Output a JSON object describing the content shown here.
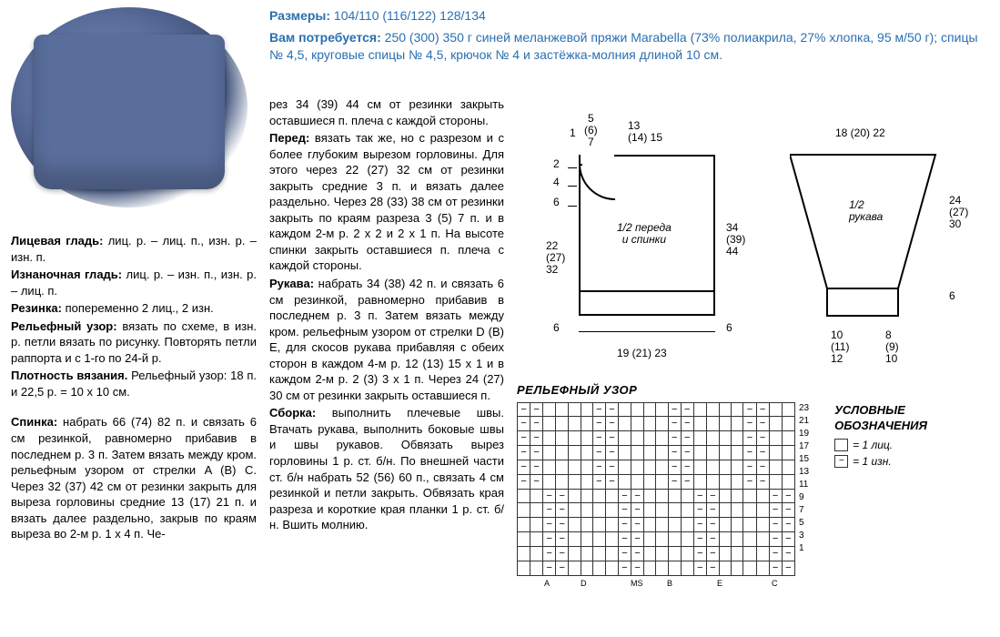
{
  "header": {
    "sizes_label": "Размеры:",
    "sizes_value": " 104/110 (116/122) 128/134",
    "needs_label": "Вам потребуется:",
    "needs_value": " 250 (300) 350 г синей меланжевой пряжи Marabella (73% полиакрила, 27% хлопка, 95 м/50 г); спицы № 4,5, круговые спицы № 4,5, крючок № 4 и застёжка-мол­ния длиной 10 см."
  },
  "col1": {
    "p1_b": "Лицевая гладь:",
    "p1": " лиц. р. – лиц. п., изн. р. – изн. п.",
    "p2_b": "Изнаночная гладь:",
    "p2": " лиц. р. – изн. п., изн. р. – лиц. п.",
    "p3_b": "Резинка:",
    "p3": " попеременно 2 лиц., 2 изн.",
    "p4_b": "Рельефный узор:",
    "p4": " вязать по схеме, в изн. р. петли вязать по рисунку. По­вторять петли раппорта и с 1-го по 24-й р.",
    "p5_b": "Плотность вязания.",
    "p5": " Рельефный узор: 18 п. и 22,5 р. = 10 x 10 см.",
    "p6_b": "Спинка:",
    "p6": " набрать 66 (74) 82 п. и свя­зать 6 см резинкой, равномерно прибавив в последнем р. 3 п. Затем вязать между кром. рельефным узо­ром от стрелки A (B) C. Через 32 (37) 42 см от резинки закрыть для выре­за горловины средние 13 (17) 21 п. и вязать далее раздельно, закрыв по краям выреза во 2-м р. 1 x 4 п. Че-"
  },
  "col2": {
    "p1": "рез 34 (39) 44 см от резинки закрыть оставшиеся п. плеча с каждой сторо­ны.",
    "p2_b": "Перед:",
    "p2": " вязать так же, но с разрезом и с более глубоким вырезом горловины. Для этого через 22 (27) 32 см от резин­ки закрыть средние 3 п. и вязать далее раздельно. Через 28 (33) 38 см от ре­зинки закрыть по краям разреза 3 (5) 7 п. и в каждом 2-м р. 2 x 2 и 2 x 1 п. На высоте спинки закрыть оставшиеся п. плеча с каждой стороны.",
    "p3_b": "Рукава:",
    "p3": " набрать 34 (38) 42 п. и свя­зать 6 см резинкой, равномерно при­бавив в последнем р. 3 п. Затем вя­зать между кром. рельефным узором от стрелки D (B) E, для скосов рукава прибавляя с обеих сторон в каждом 4-м р. 12 (13) 15 x 1 и в каждом 2-м р. 2 (3) 3 x 1 п. Через 24 (27) 30 см от ре­зинки закрыть оставшиеся п.",
    "p4_b": "Сборка:",
    "p4": " выполнить плечевые швы. Втачать рукава, выполнить боковые швы и швы рукавов. Обвязать вырез горловины 1 р. ст. б/н. По внешней ча­сти ст. б/н набрать 52 (56) 60 п., свя­зать 4 см резинкой и петли закрыть. Обвязать края разреза и короткие края планки 1 р. ст. б/н. Вшить мол­нию."
  },
  "diag": {
    "body_label": "1/2 переда\nи спинки",
    "sleeve_label": "1/2\nрукава",
    "top_1": "1",
    "top_5_6_7": "5\n(6)\n7",
    "top_13_14_15": "13\n(14) 15",
    "top_18_20_22": "18 (20) 22",
    "left_2": "2",
    "left_4": "4",
    "left_6": "6",
    "left_22_27_32": "22\n(27)\n32",
    "right_34_39_44": "34\n(39)\n44",
    "right_24_27_30": "24\n(27)\n30",
    "bot_6_l": "6",
    "bot_6_r": "6",
    "bot_19_21_23": "19 (21) 23",
    "bot_10_11_12": "10\n(11)\n12",
    "bot_8_9_10": "8\n(9)\n10"
  },
  "pattern": {
    "title": "РЕЛЬЕФНЫЙ УЗОР",
    "legend_title": "УСЛОВНЫЕ ОБОЗНАЧЕНИЯ",
    "legend1": "= 1 лиц.",
    "legend2": "= 1 изн.",
    "rows": [
      "23",
      "21",
      "19",
      "17",
      "15",
      "13",
      "11",
      "9",
      "7",
      "5",
      "3",
      "1"
    ],
    "bottom_labels": [
      "A",
      "D",
      "B",
      "E",
      "C"
    ],
    "ms": "MS"
  }
}
